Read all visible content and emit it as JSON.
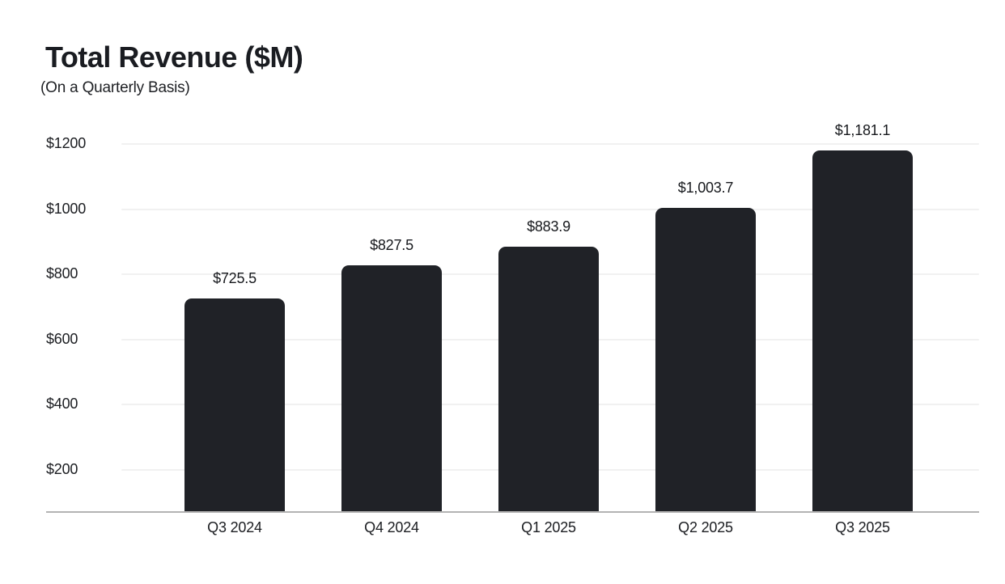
{
  "page": {
    "background_color": "#ffffff"
  },
  "chart_data": {
    "type": "bar",
    "title": "Total Revenue ($M)",
    "subtitle": "(On a Quarterly Basis)",
    "categories": [
      "Q3 2024",
      "Q4 2024",
      "Q1 2025",
      "Q2 2025",
      "Q3 2025"
    ],
    "values": [
      725.5,
      827.5,
      883.9,
      1003.7,
      1181.1
    ],
    "value_labels": [
      "$725.5",
      "$827.5",
      "$883.9",
      "$1,003.7",
      "$1,181.1"
    ],
    "xlabel": "",
    "ylabel": "",
    "y_ticks": [
      200,
      400,
      600,
      800,
      1000,
      1200
    ],
    "y_tick_labels": [
      "$200",
      "$400",
      "$600",
      "$800",
      "$1000",
      "$1200"
    ],
    "ylim": [
      70,
      1300
    ],
    "grid": "horizontal-only",
    "legend_position": "none",
    "colors": {
      "bar": "#202227",
      "grid_line": "#f1f1f1",
      "axis_line": "#b3b3b3",
      "title_text": "#1a1c21",
      "label_text": "#1b1d21",
      "background": "#ffffff"
    }
  }
}
